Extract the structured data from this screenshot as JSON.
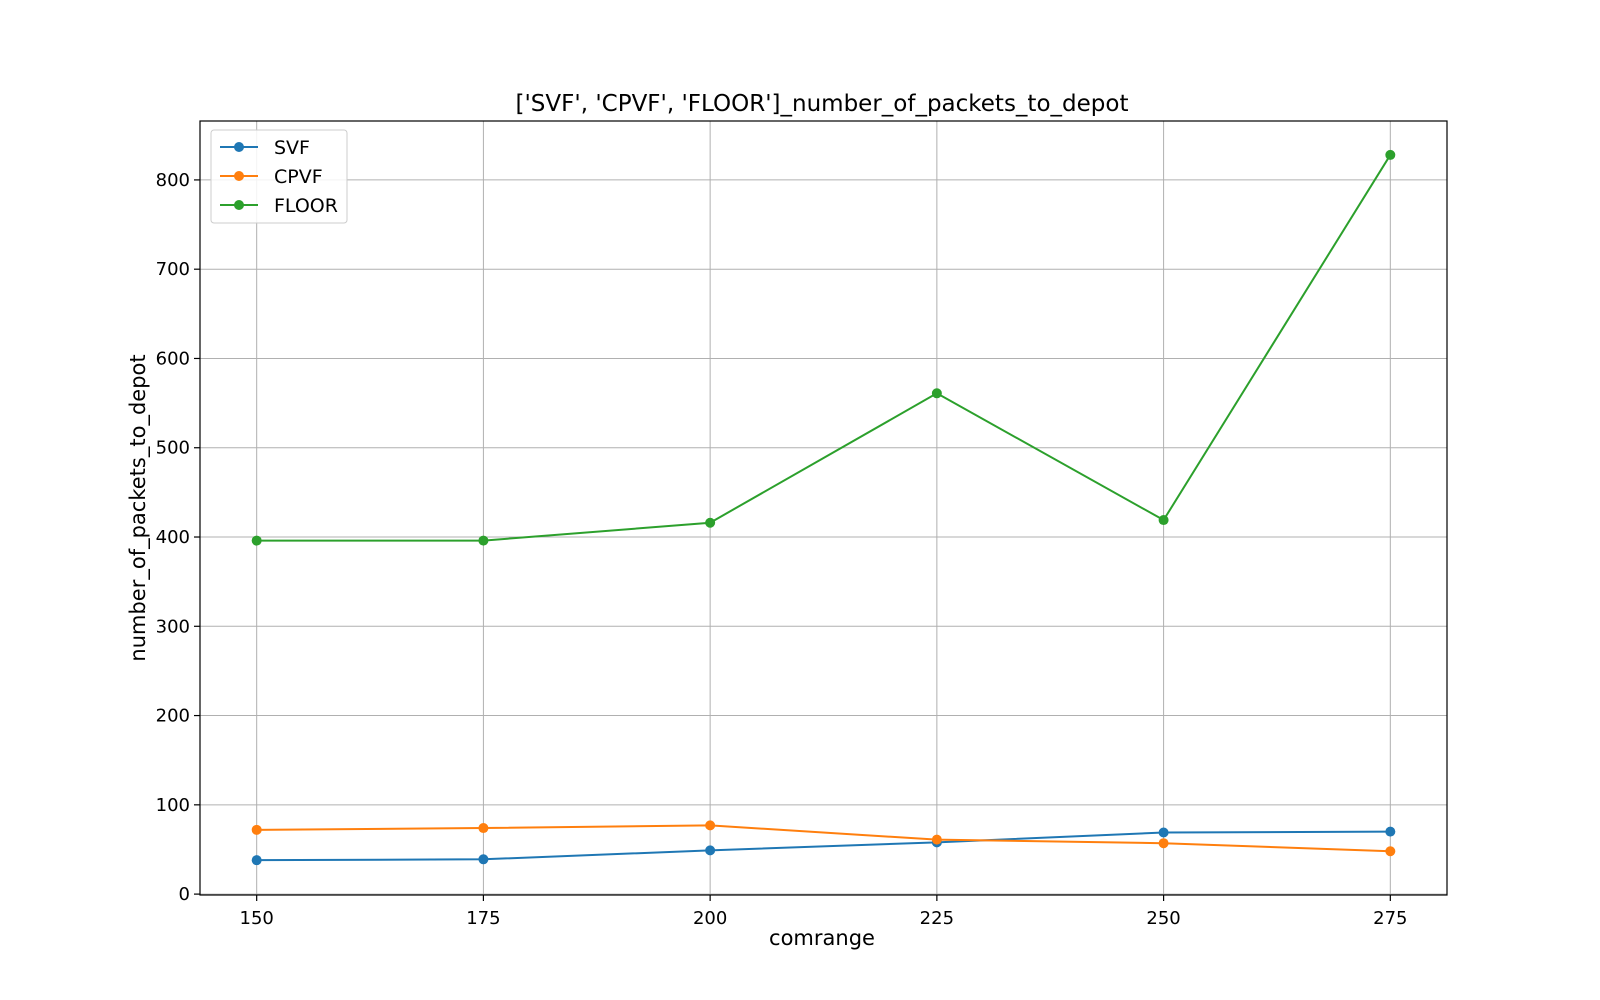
{
  "chart_data": {
    "type": "line",
    "title": "['SVF', 'CPVF', 'FLOOR']_number_of_packets_to_depot",
    "xlabel": "comrange",
    "ylabel": "number_of_packets_to_depot",
    "x": [
      150,
      175,
      200,
      225,
      250,
      275
    ],
    "xticks": [
      150,
      175,
      200,
      225,
      250,
      275
    ],
    "yticks": [
      0,
      100,
      200,
      300,
      400,
      500,
      600,
      700,
      800
    ],
    "xlim": [
      143.75,
      281.25
    ],
    "ylim": [
      -1,
      866
    ],
    "grid": true,
    "legend_position": "upper-left",
    "marker": "circle",
    "series": [
      {
        "name": "SVF",
        "color": "#1f77b4",
        "values": [
          38,
          39,
          49,
          58,
          69,
          70
        ]
      },
      {
        "name": "CPVF",
        "color": "#ff7f0e",
        "values": [
          72,
          74,
          77,
          61,
          57,
          48
        ]
      },
      {
        "name": "FLOOR",
        "color": "#2ca02c",
        "values": [
          396,
          396,
          416,
          561,
          419,
          828
        ]
      }
    ]
  }
}
